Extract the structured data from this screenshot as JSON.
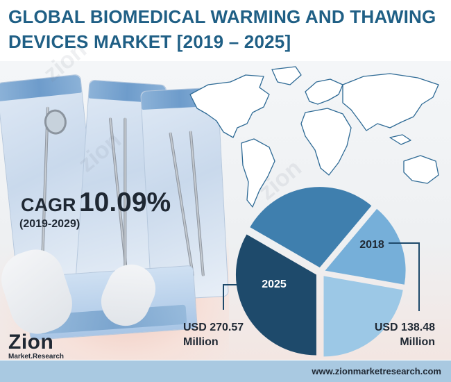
{
  "title": "GLOBAL BIOMEDICAL WARMING AND THAWING DEVICES MARKET [2019 – 2025]",
  "cagr": {
    "label": "CAGR",
    "value": "10.09%",
    "period": "(2019-2029)"
  },
  "chart_data": {
    "type": "pie",
    "segments": [
      {
        "label": "2025",
        "value": 270.57,
        "annotation": [
          "USD 270.57",
          "Million"
        ]
      },
      {
        "label": "2018",
        "value": 138.48,
        "annotation": [
          "USD 138.48",
          "Million"
        ]
      }
    ]
  },
  "colors": {
    "title": "#1f5f85",
    "segment_dark": "#1e4a6b",
    "segment_mid": "#3f7fae",
    "segment_light": "#76afd9",
    "segment_lightest": "#9cc8e6",
    "footer": "#a9c9e1",
    "text_dark": "#1f2833"
  },
  "logo": {
    "brand": "Zion",
    "sub": "Market.Research"
  },
  "footer": {
    "url": "www.zionmarketresearch.com"
  },
  "watermark": {
    "brand": "zion",
    "sub": "Market.Research"
  },
  "illustrations": [
    "sterile-instrument-pouches-photo",
    "world-map-outline"
  ]
}
